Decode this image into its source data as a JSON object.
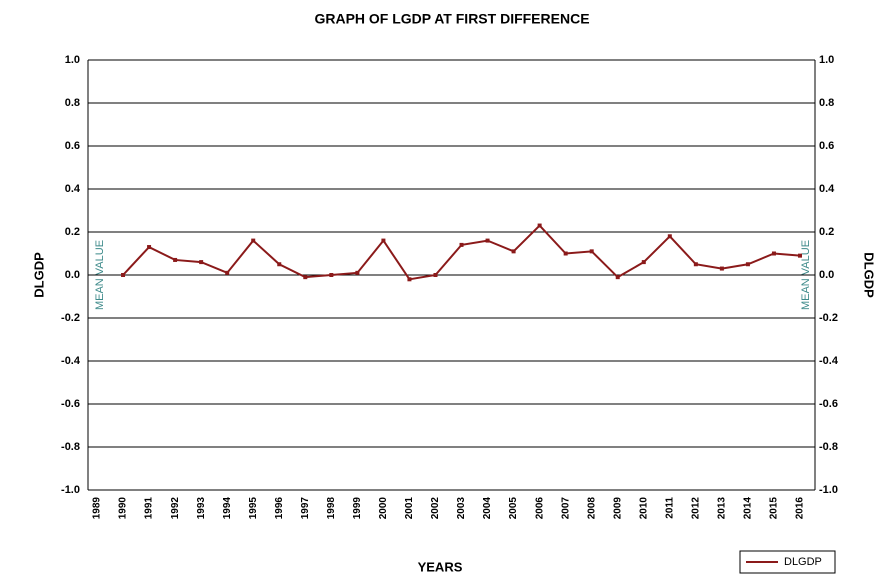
{
  "chart_data": {
    "type": "line",
    "title": "GRAPH OF LGDP AT FIRST DIFFERENCE",
    "x_label": "YEARS",
    "y_label": "DLGDP",
    "y2_label": "DLGDP",
    "annotations": [
      "MEAN VALUE",
      "MEAN VALUE"
    ],
    "categories": [
      "1989",
      "1990",
      "1991",
      "1992",
      "1993",
      "1994",
      "1995",
      "1996",
      "1997",
      "1998",
      "1999",
      "2000",
      "2001",
      "2002",
      "2003",
      "2004",
      "2005",
      "2006",
      "2007",
      "2008",
      "2009",
      "2010",
      "2011",
      "2012",
      "2013",
      "2014",
      "2015",
      "2016"
    ],
    "series": [
      {
        "name": "DLGDP",
        "color": "#8b1a1a",
        "values": [
          null,
          0.0,
          0.13,
          0.07,
          0.06,
          0.01,
          0.16,
          0.05,
          -0.01,
          0.0,
          0.01,
          0.16,
          -0.02,
          0.0,
          0.14,
          0.16,
          0.11,
          0.23,
          0.1,
          0.11,
          -0.01,
          0.06,
          0.18,
          0.05,
          0.03,
          0.05,
          0.1,
          0.09
        ]
      }
    ],
    "ylim": [
      -1,
      1
    ],
    "yticks": [
      {
        "value": 1,
        "label": "1.0"
      },
      0.8,
      0.6,
      0.4,
      0.2,
      {
        "value": 0,
        "label": "0.0"
      },
      -0.2,
      -0.4,
      -0.6,
      -0.8,
      {
        "value": -1,
        "label": "-1.0"
      }
    ],
    "y2lim": [
      -1,
      1
    ],
    "y2ticks": [
      {
        "value": 1,
        "label": "1.0"
      },
      0.8,
      0.6,
      0.4,
      0.2,
      {
        "value": 0,
        "label": "0.0"
      },
      -0.2,
      -0.4,
      -0.6,
      -0.8,
      {
        "value": -1,
        "label": "-1.0"
      }
    ],
    "grid": true,
    "legend": "bottom-right"
  }
}
